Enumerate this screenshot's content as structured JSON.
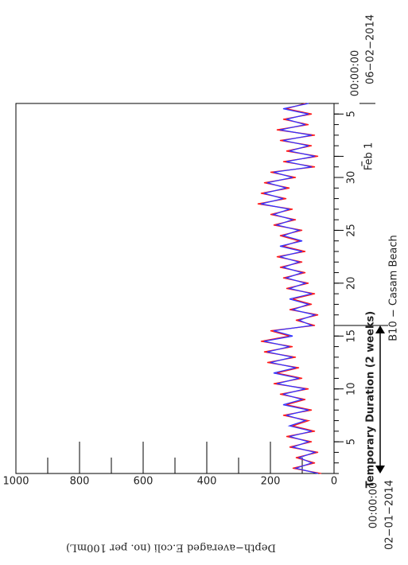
{
  "chart_data": {
    "type": "line",
    "title": "B10 − Casam Beach",
    "y_label": "Depth−averaged E.coli (no. per 100mL)",
    "x_start": {
      "time": "00:00:00",
      "date": "02−01−2014"
    },
    "x_end": {
      "time": "00:00:00",
      "date": "06−02−2014"
    },
    "xlim": [
      2,
      37
    ],
    "xticks": [
      5,
      10,
      15,
      20,
      25,
      30,
      {
        "value": 32,
        "label": "Feb 1"
      },
      {
        "value": 36,
        "label": "5"
      }
    ],
    "ylim": [
      0,
      1000
    ],
    "yticks": [
      0,
      200,
      400,
      600,
      800,
      1000
    ],
    "yminor": [
      100,
      300,
      500,
      700,
      900
    ],
    "annotation": {
      "text": "Temporary Duration (2 weeks)",
      "x_range": [
        2,
        16
      ]
    },
    "x": [
      2,
      2.5,
      3,
      3.5,
      4,
      4.5,
      5,
      5.5,
      6,
      6.5,
      7,
      7.5,
      8,
      8.5,
      9,
      9.5,
      10,
      10.5,
      11,
      11.5,
      12,
      12.5,
      13,
      13.5,
      14,
      14.5,
      15,
      15.5,
      16,
      16.5,
      17,
      17.5,
      18,
      18.5,
      19,
      19.5,
      20,
      20.5,
      21,
      21.5,
      22,
      22.5,
      23,
      23.5,
      24,
      24.5,
      25,
      25.5,
      26,
      26.5,
      27,
      27.5,
      28,
      28.5,
      29,
      29.5,
      30,
      30.5,
      31,
      31.5,
      32,
      32.5,
      33,
      33.5,
      34,
      34.5,
      35,
      35.5,
      36,
      36.5,
      37
    ],
    "series": [
      {
        "name": "red",
        "color": "#ff1a1a",
        "values": [
          40,
          130,
          60,
          120,
          50,
          140,
          70,
          150,
          60,
          130,
          80,
          160,
          70,
          150,
          90,
          170,
          80,
          190,
          100,
          180,
          110,
          210,
          120,
          220,
          130,
          230,
          140,
          200,
          60,
          120,
          50,
          140,
          70,
          130,
          60,
          150,
          80,
          160,
          90,
          170,
          100,
          180,
          90,
          160,
          110,
          170,
          100,
          190,
          120,
          200,
          130,
          240,
          150,
          230,
          140,
          220,
          120,
          200,
          60,
          160,
          50,
          150,
          70,
          170,
          60,
          180,
          80,
          160,
          70,
          150,
          90
        ]
      },
      {
        "name": "blue",
        "color": "#3333ff",
        "values": [
          50,
          120,
          70,
          110,
          60,
          130,
          80,
          140,
          70,
          140,
          90,
          150,
          80,
          160,
          100,
          160,
          90,
          180,
          110,
          190,
          120,
          200,
          130,
          210,
          140,
          220,
          130,
          190,
          70,
          110,
          60,
          130,
          80,
          140,
          70,
          140,
          90,
          150,
          100,
          160,
          110,
          170,
          100,
          170,
          100,
          160,
          110,
          180,
          130,
          190,
          140,
          230,
          160,
          220,
          150,
          210,
          130,
          190,
          70,
          150,
          60,
          140,
          80,
          160,
          70,
          170,
          90,
          150,
          80,
          160,
          80
        ]
      }
    ]
  }
}
